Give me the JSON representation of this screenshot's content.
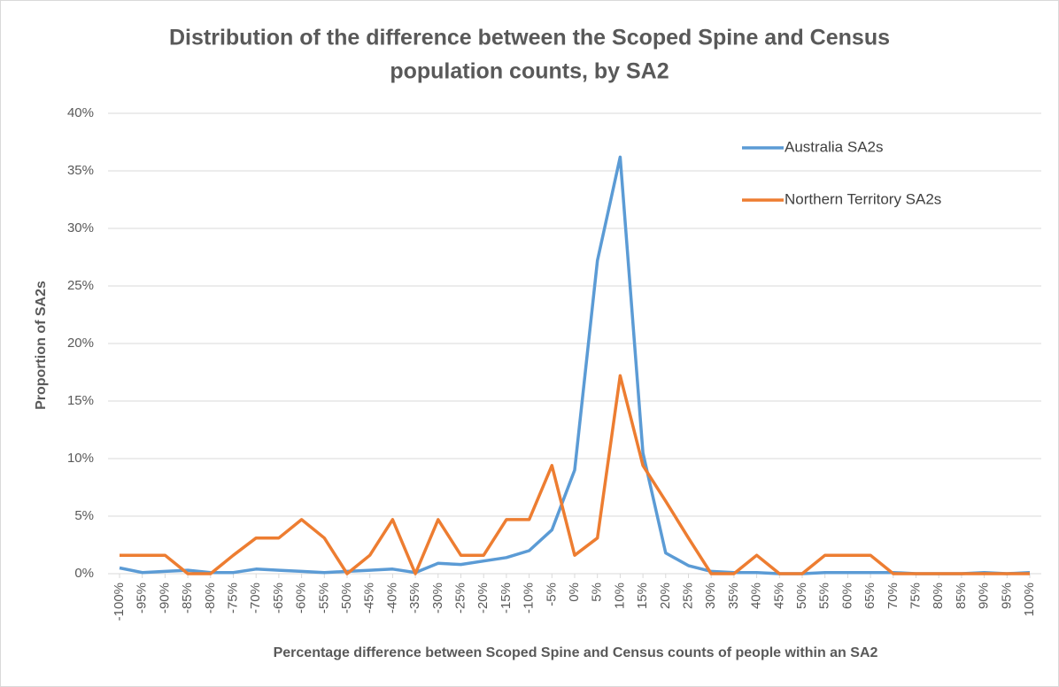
{
  "chart_data": {
    "type": "line",
    "title": [
      "Distribution of the difference between the Scoped Spine and Census",
      "population counts, by SA2"
    ],
    "x_label": "Percentage difference between Scoped Spine and Census counts of people within an SA2",
    "y_label": "Proportion of SA2s",
    "categories": [
      "-100%",
      "-95%",
      "-90%",
      "-85%",
      "-80%",
      "-75%",
      "-70%",
      "-65%",
      "-60%",
      "-55%",
      "-50%",
      "-45%",
      "-40%",
      "-35%",
      "-30%",
      "-25%",
      "-20%",
      "-15%",
      "-10%",
      "-5%",
      "0%",
      "5%",
      "10%",
      "15%",
      "20%",
      "25%",
      "30%",
      "35%",
      "40%",
      "45%",
      "50%",
      "55%",
      "60%",
      "65%",
      "70%",
      "75%",
      "80%",
      "85%",
      "90%",
      "95%",
      "100%"
    ],
    "series": [
      {
        "name": "Australia SA2s",
        "color": "#5b9bd5",
        "values": [
          0.5,
          0.1,
          0.2,
          0.3,
          0.1,
          0.1,
          0.4,
          0.3,
          0.2,
          0.1,
          0.2,
          0.3,
          0.4,
          0.1,
          0.9,
          0.8,
          1.1,
          1.4,
          2.0,
          3.8,
          9.0,
          27.2,
          36.2,
          10.5,
          1.8,
          0.7,
          0.2,
          0.1,
          0.1,
          0,
          0,
          0.1,
          0.1,
          0.1,
          0.1,
          0,
          0,
          0,
          0.1,
          0,
          0.1
        ]
      },
      {
        "name": "Northern Territory SA2s",
        "color": "#ed7d31",
        "values": [
          1.6,
          1.6,
          1.6,
          0,
          0,
          1.6,
          3.1,
          3.1,
          4.7,
          3.1,
          0,
          1.6,
          4.7,
          0,
          4.7,
          1.6,
          1.6,
          4.7,
          4.7,
          9.4,
          1.6,
          3.1,
          17.2,
          9.4,
          6.3,
          3.1,
          0,
          0,
          1.6,
          0,
          0,
          1.6,
          1.6,
          1.6,
          0,
          0,
          0,
          0,
          0,
          0,
          0
        ]
      }
    ],
    "ylim": [
      0,
      40
    ],
    "yticks": [
      {
        "value": 0,
        "label": "0%"
      },
      {
        "value": 5,
        "label": "5%"
      },
      {
        "value": 10,
        "label": "10%"
      },
      {
        "value": 15,
        "label": "15%"
      },
      {
        "value": 20,
        "label": "20%"
      },
      {
        "value": 25,
        "label": "25%"
      },
      {
        "value": 30,
        "label": "30%"
      },
      {
        "value": 35,
        "label": "35%"
      },
      {
        "value": 40,
        "label": "40%"
      }
    ],
    "grid": true,
    "legend": "top-right"
  }
}
